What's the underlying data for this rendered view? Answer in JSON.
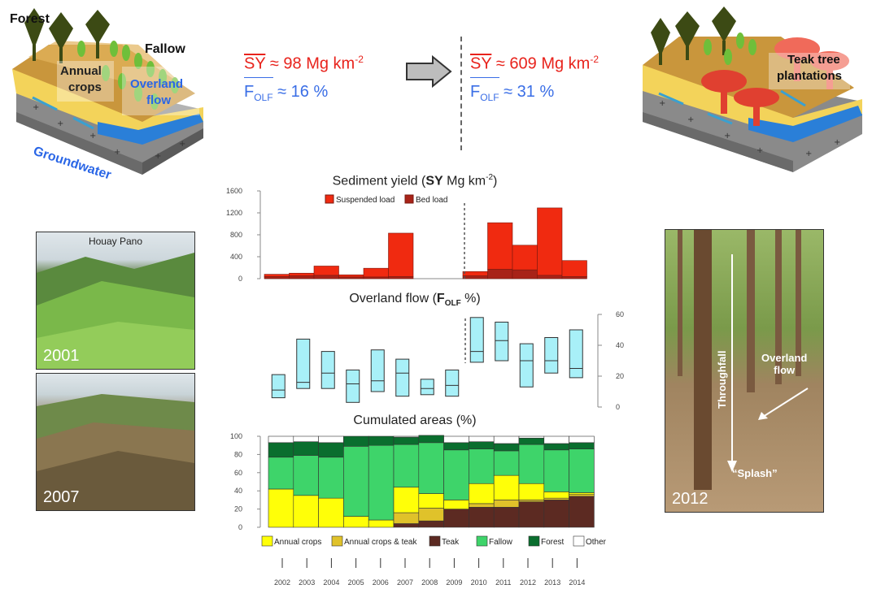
{
  "left_block": {
    "forest": "Forest",
    "fallow": "Fallow",
    "annual_crops": "Annual\ncrops",
    "overland_flow": "Overland\nflow",
    "groundwater": "Groundwater"
  },
  "right_block": {
    "teak": "Teak tree\nplantations"
  },
  "before": {
    "sy_sym": "SY",
    "sy_val": " ≈ 98 Mg km",
    "sup": "-2",
    "f_sym": "F",
    "f_sub": "OLF",
    "f_val": " ≈ 16 %"
  },
  "after": {
    "sy_sym": "SY",
    "sy_val": " ≈ 609 Mg km",
    "sup": "-2",
    "f_sym": "F",
    "f_sub": "OLF",
    "f_val": " ≈ 31 %"
  },
  "photos": {
    "p1_caption": "Houay Pano",
    "p1_year": "2001",
    "p2_year": "2007",
    "p3_year": "2012",
    "throughfall": "Throughfall",
    "overland": "Overland\nflow",
    "splash": "“Splash”"
  },
  "titles": {
    "sy": {
      "pre": "Sediment yield (",
      "bold": "SY",
      "post": " Mg km",
      "sup": "-2",
      "end": ")"
    },
    "olf": {
      "pre": "Overland flow (",
      "bold": "F",
      "sub": "OLF",
      "post": " %)"
    },
    "areas": "Cumulated areas (%)"
  },
  "chart_data": [
    {
      "type": "bar",
      "title": "Sediment yield (SY Mg km-2)",
      "categories": [
        "2002",
        "2003",
        "2004",
        "2005",
        "2006",
        "2007",
        "2008",
        "2009",
        "2010",
        "2011",
        "2012",
        "2013",
        "2014"
      ],
      "series": [
        {
          "name": "Suspended load",
          "values": [
            40,
            50,
            170,
            40,
            160,
            790,
            0,
            0,
            80,
            850,
            450,
            1230,
            290
          ],
          "color": "#f02a10"
        },
        {
          "name": "Bed load",
          "values": [
            40,
            50,
            60,
            30,
            30,
            40,
            0,
            0,
            50,
            170,
            160,
            60,
            40
          ],
          "color": "#a82318"
        }
      ],
      "yticks": [
        "1600",
        "1200",
        "800",
        "400",
        "0"
      ],
      "ylim": [
        0,
        1600
      ],
      "stacked": true
    },
    {
      "type": "boxplot",
      "title": "Overland flow (FOLF %)",
      "categories": [
        "2002",
        "2003",
        "2004",
        "2005",
        "2006",
        "2007",
        "2008",
        "2009",
        "2010",
        "2011",
        "2012",
        "2013",
        "2014"
      ],
      "boxes": [
        {
          "low": 6,
          "q1": 6,
          "med": 11,
          "q3": 21,
          "high": 21
        },
        {
          "low": 12,
          "q1": 12,
          "med": 16,
          "q3": 44,
          "high": 44
        },
        {
          "low": 12,
          "q1": 12,
          "med": 22,
          "q3": 36,
          "high": 36
        },
        {
          "low": 3,
          "q1": 3,
          "med": 15,
          "q3": 24,
          "high": 24
        },
        {
          "low": 10,
          "q1": 10,
          "med": 17,
          "q3": 37,
          "high": 37
        },
        {
          "low": 7,
          "q1": 7,
          "med": 22,
          "q3": 31,
          "high": 31
        },
        {
          "low": 8,
          "q1": 8,
          "med": 12,
          "q3": 18,
          "high": 18
        },
        {
          "low": 7,
          "q1": 7,
          "med": 14,
          "q3": 24,
          "high": 24
        },
        {
          "low": 29,
          "q1": 29,
          "med": 36,
          "q3": 58,
          "high": 58
        },
        {
          "low": 30,
          "q1": 30,
          "med": 43,
          "q3": 55,
          "high": 55
        },
        {
          "low": 13,
          "q1": 13,
          "med": 30,
          "q3": 41,
          "high": 41
        },
        {
          "low": 22,
          "q1": 22,
          "med": 30,
          "q3": 45,
          "high": 45
        },
        {
          "low": 19,
          "q1": 19,
          "med": 25,
          "q3": 50,
          "high": 50
        }
      ],
      "yticks": [
        "60",
        "40",
        "20",
        "0"
      ],
      "ylim": [
        0,
        60
      ],
      "color": "#a8f0f8"
    },
    {
      "type": "bar",
      "title": "Cumulated areas (%)",
      "categories": [
        "2002",
        "2003",
        "2004",
        "2005",
        "2006",
        "2007",
        "2008",
        "2009",
        "2010",
        "2011",
        "2012",
        "2013",
        "2014"
      ],
      "stacked": true,
      "series": [
        {
          "name": "Teak",
          "values": [
            0,
            0,
            0,
            0,
            0,
            4,
            7,
            20,
            22,
            22,
            28,
            30,
            34
          ],
          "color": "#5c2a22"
        },
        {
          "name": "Annual crops & teak",
          "values": [
            0,
            0,
            0,
            0,
            0,
            12,
            14,
            0,
            4,
            8,
            2,
            2,
            2
          ],
          "color": "#e0c22a"
        },
        {
          "name": "Annual crops",
          "values": [
            42,
            35,
            32,
            12,
            8,
            28,
            16,
            10,
            22,
            27,
            18,
            7,
            2
          ],
          "color": "#ffff08"
        },
        {
          "name": "Fallow",
          "values": [
            35,
            44,
            45,
            77,
            82,
            47,
            56,
            55,
            38,
            27,
            43,
            46,
            48
          ],
          "color": "#3ed46a"
        },
        {
          "name": "Forest",
          "values": [
            16,
            15,
            16,
            11,
            10,
            8,
            8,
            8,
            8,
            8,
            7,
            7,
            7
          ],
          "color": "#0a6e2e"
        },
        {
          "name": "Other",
          "values": [
            7,
            6,
            7,
            0,
            0,
            1,
            0,
            7,
            6,
            8,
            2,
            8,
            7
          ],
          "color": "#ffffff"
        }
      ],
      "yticks": [
        "100",
        "80",
        "60",
        "40",
        "20",
        "0"
      ],
      "ylim": [
        0,
        100
      ]
    }
  ],
  "legend_sy": [
    "Suspended load",
    "Bed load"
  ],
  "legend_areas": [
    "Annual crops",
    "Annual crops & teak",
    "Teak",
    "Fallow",
    "Forest",
    "Other"
  ],
  "years": [
    "2002",
    "2003",
    "2004",
    "2005",
    "2006",
    "2007",
    "2008",
    "2009",
    "2010",
    "2011",
    "2012",
    "2013",
    "2014"
  ]
}
